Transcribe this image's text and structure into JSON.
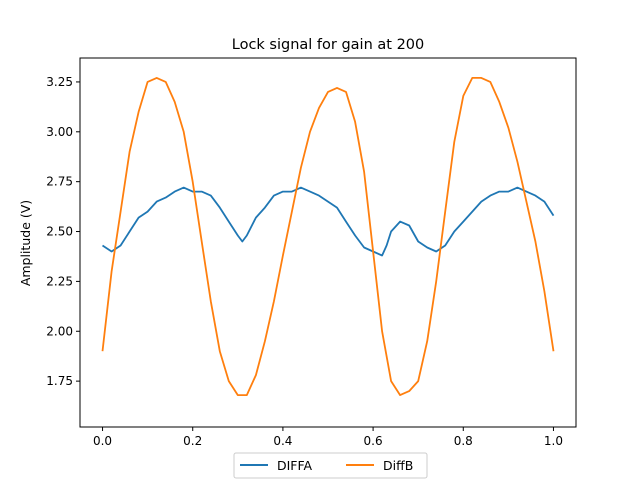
{
  "chart_data": {
    "type": "line",
    "title": "Lock signal for gain at 200",
    "xlabel": "",
    "ylabel": "Amplitude (V)",
    "xlim": [
      -0.05,
      1.05
    ],
    "ylim": [
      1.52,
      3.37
    ],
    "xticks": [
      "0.0",
      "0.2",
      "0.4",
      "0.6",
      "0.8",
      "1.0"
    ],
    "yticks": [
      "1.75",
      "2.00",
      "2.25",
      "2.50",
      "2.75",
      "3.00",
      "3.25"
    ],
    "grid": false,
    "legend_position": "bottom-center-outside",
    "series": [
      {
        "name": "DIFFA",
        "color": "#1f77b4",
        "x": [
          0.0,
          0.02,
          0.04,
          0.06,
          0.08,
          0.1,
          0.12,
          0.14,
          0.16,
          0.18,
          0.2,
          0.22,
          0.24,
          0.26,
          0.28,
          0.3,
          0.31,
          0.32,
          0.34,
          0.36,
          0.38,
          0.4,
          0.42,
          0.44,
          0.46,
          0.48,
          0.5,
          0.52,
          0.54,
          0.56,
          0.58,
          0.6,
          0.62,
          0.63,
          0.64,
          0.66,
          0.68,
          0.7,
          0.72,
          0.74,
          0.76,
          0.78,
          0.8,
          0.82,
          0.84,
          0.86,
          0.88,
          0.9,
          0.92,
          0.94,
          0.96,
          0.98,
          1.0
        ],
        "y": [
          2.43,
          2.4,
          2.43,
          2.5,
          2.57,
          2.6,
          2.65,
          2.67,
          2.7,
          2.72,
          2.7,
          2.7,
          2.68,
          2.62,
          2.55,
          2.48,
          2.45,
          2.48,
          2.57,
          2.62,
          2.68,
          2.7,
          2.7,
          2.72,
          2.7,
          2.68,
          2.65,
          2.62,
          2.55,
          2.48,
          2.42,
          2.4,
          2.38,
          2.43,
          2.5,
          2.55,
          2.53,
          2.45,
          2.42,
          2.4,
          2.43,
          2.5,
          2.55,
          2.6,
          2.65,
          2.68,
          2.7,
          2.7,
          2.72,
          2.7,
          2.68,
          2.65,
          2.58
        ]
      },
      {
        "name": "DiffB",
        "color": "#ff7f0e",
        "x": [
          0.0,
          0.02,
          0.04,
          0.06,
          0.08,
          0.1,
          0.12,
          0.14,
          0.16,
          0.18,
          0.2,
          0.22,
          0.24,
          0.26,
          0.28,
          0.3,
          0.32,
          0.34,
          0.36,
          0.38,
          0.4,
          0.42,
          0.44,
          0.46,
          0.48,
          0.5,
          0.52,
          0.54,
          0.56,
          0.58,
          0.6,
          0.62,
          0.64,
          0.66,
          0.68,
          0.7,
          0.72,
          0.74,
          0.76,
          0.78,
          0.8,
          0.82,
          0.84,
          0.86,
          0.88,
          0.9,
          0.92,
          0.94,
          0.96,
          0.98,
          1.0
        ],
        "y": [
          1.9,
          2.3,
          2.6,
          2.9,
          3.1,
          3.25,
          3.27,
          3.25,
          3.15,
          3.0,
          2.75,
          2.45,
          2.15,
          1.9,
          1.75,
          1.68,
          1.68,
          1.78,
          1.95,
          2.15,
          2.38,
          2.6,
          2.82,
          3.0,
          3.12,
          3.2,
          3.22,
          3.2,
          3.05,
          2.8,
          2.4,
          2.0,
          1.75,
          1.68,
          1.7,
          1.75,
          1.95,
          2.25,
          2.6,
          2.95,
          3.18,
          3.27,
          3.27,
          3.25,
          3.15,
          3.02,
          2.85,
          2.65,
          2.45,
          2.2,
          1.9
        ]
      }
    ]
  }
}
